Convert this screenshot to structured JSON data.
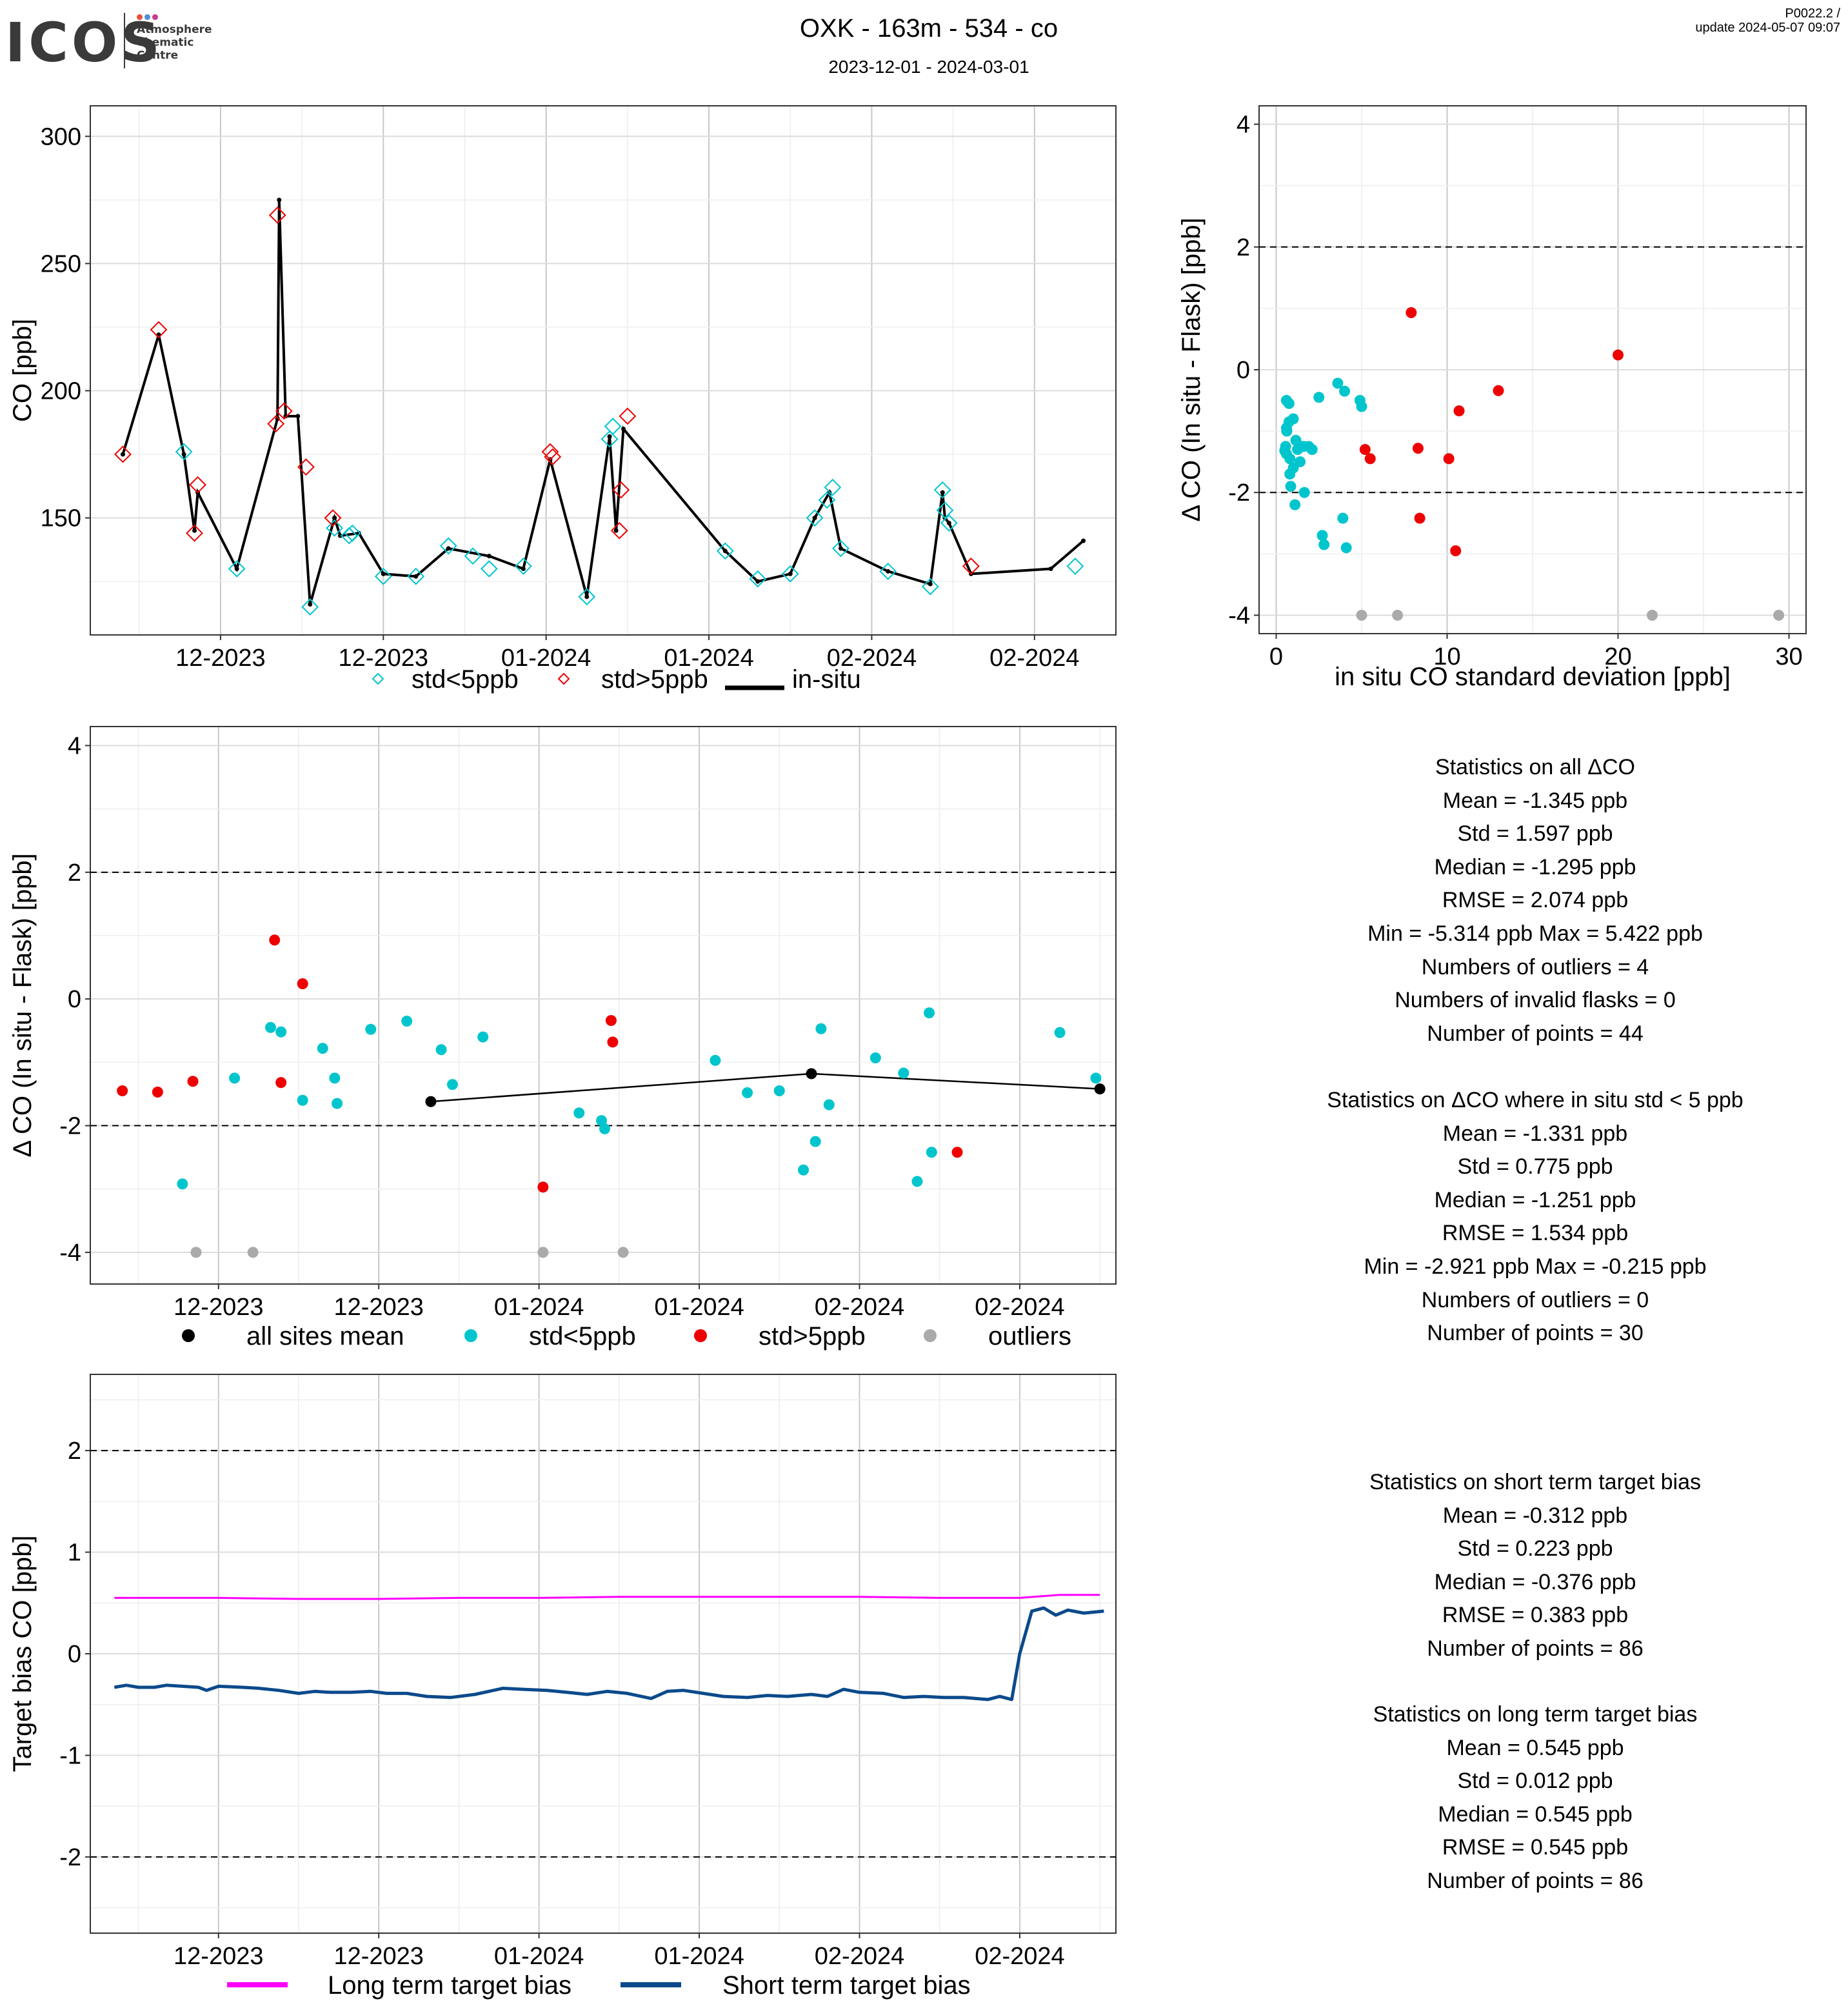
{
  "header": {
    "logo_word": "ICOS",
    "logo_sub": [
      "Atmosphere",
      "Thematic",
      "Centre"
    ],
    "logo_dots": [
      "#e8503a",
      "#4a8fd6",
      "#cf3a8c"
    ],
    "title": "OXK - 163m - 534 - co",
    "subtitle": "2023-12-01 - 2024-03-01",
    "version_line1": "P0022.2 /",
    "version_line2": "update  2024-05-07 09:07"
  },
  "colors": {
    "cyan": "#00c5cd",
    "red": "#ee0000",
    "grey": "#aaaaaa",
    "black": "#000000",
    "magenta": "#ff00ff",
    "navy": "#0b4a8b"
  },
  "chart_data": [
    {
      "type": "line",
      "ylabel": "CO [ppb]",
      "xlim": [
        -0.6,
        12.0
      ],
      "ylim": [
        104,
        312
      ],
      "x_ticks": [
        1,
        3,
        5,
        7,
        9,
        11
      ],
      "x_tick_labels": [
        "12-2023",
        "12-2023",
        "01-2024",
        "01-2024",
        "02-2024",
        "02-2024"
      ],
      "y_ticks": [
        150,
        200,
        250,
        300
      ],
      "y_tick_labels": [
        "150",
        "200",
        "250",
        "300"
      ],
      "legend": [
        "std<5ppb",
        "std>5ppb",
        "in-situ"
      ],
      "legend_position": "bottom",
      "insitu": {
        "x": [
          -0.2,
          0.24,
          0.55,
          0.68,
          0.72,
          1.2,
          1.7,
          1.72,
          1.8,
          1.95,
          2.1,
          2.4,
          2.47,
          2.7,
          3.0,
          3.4,
          3.8,
          4.3,
          4.72,
          5.05,
          5.5,
          5.78,
          5.86,
          5.95,
          7.2,
          7.6,
          8.0,
          8.3,
          8.48,
          8.62,
          9.2,
          9.72,
          9.87,
          9.9,
          9.95,
          10.22,
          11.2,
          11.6
        ],
        "y": [
          175,
          222,
          175,
          145,
          160,
          130,
          189,
          275,
          190,
          190,
          116,
          150,
          143,
          144,
          128,
          127,
          138,
          135,
          130,
          173,
          119,
          182,
          145,
          185,
          137,
          125,
          128,
          150,
          160,
          138,
          129,
          124,
          160,
          150,
          148,
          128,
          130,
          141
        ]
      },
      "flasks_low": {
        "name": "std<5ppb",
        "x": [
          0.55,
          1.2,
          2.1,
          2.4,
          2.58,
          2.62,
          3.0,
          3.4,
          3.8,
          4.1,
          4.3,
          4.72,
          5.5,
          5.78,
          5.82,
          7.2,
          7.6,
          8.0,
          8.3,
          8.45,
          8.52,
          8.62,
          9.2,
          9.72,
          9.87,
          9.9,
          9.95,
          11.5
        ],
        "y": [
          176,
          130,
          115,
          146,
          143,
          144,
          127,
          127,
          139,
          135,
          130,
          131,
          119,
          181,
          186,
          137,
          126,
          128,
          150,
          157,
          162,
          138,
          129,
          123,
          161,
          153,
          148,
          131
        ]
      },
      "flasks_high": {
        "name": "std>5ppb",
        "x": [
          -0.2,
          0.24,
          0.68,
          0.72,
          1.68,
          1.7,
          1.78,
          2.05,
          2.38,
          5.05,
          5.08,
          5.9,
          5.92,
          6.0,
          10.22
        ],
        "y": [
          175,
          224,
          144,
          163,
          187,
          269,
          192,
          170,
          150,
          176,
          174,
          145,
          161,
          190,
          131
        ]
      }
    },
    {
      "type": "scatter",
      "xlabel": "in situ CO standard deviation [ppb]",
      "ylabel": "Δ CO (In situ - Flask) [ppb]",
      "xlim": [
        -1,
        31
      ],
      "ylim": [
        -4.3,
        4.3
      ],
      "x_ticks": [
        0,
        10,
        20,
        30
      ],
      "x_tick_labels": [
        "0",
        "10",
        "20",
        "30"
      ],
      "y_ticks": [
        -4,
        -2,
        0,
        2,
        4
      ],
      "y_tick_labels": [
        "-4",
        "-2",
        "0",
        "2",
        "4"
      ],
      "hlines": [
        -2,
        2
      ],
      "series": [
        {
          "name": "std<5ppb",
          "x": [
            0.5,
            0.55,
            0.6,
            0.6,
            0.6,
            0.62,
            0.75,
            0.75,
            0.8,
            0.8,
            0.85,
            1.0,
            1.0,
            1.1,
            1.15,
            1.25,
            1.4,
            1.5,
            1.6,
            1.65,
            1.9,
            2.1,
            2.5,
            2.7,
            2.8,
            3.6,
            3.9,
            4.0,
            4.1,
            4.9,
            5.0
          ],
          "y": [
            -1.32,
            -1.25,
            -1.37,
            -0.5,
            -0.95,
            -1.0,
            -0.55,
            -0.85,
            -1.45,
            -1.7,
            -1.9,
            -0.8,
            -1.6,
            -2.2,
            -1.15,
            -1.3,
            -1.5,
            -1.25,
            -1.25,
            -2.0,
            -1.25,
            -1.3,
            -0.45,
            -2.7,
            -2.85,
            -0.22,
            -2.42,
            -0.35,
            -2.9,
            -0.5,
            -0.6
          ]
        },
        {
          "name": "std>5ppb",
          "x": [
            5.2,
            5.5,
            7.9,
            8.3,
            8.4,
            10.1,
            10.5,
            10.7,
            13.0,
            20.0
          ],
          "y": [
            -1.3,
            -1.45,
            0.93,
            -1.28,
            -2.42,
            -1.45,
            -2.95,
            -0.67,
            -0.34,
            0.24
          ]
        },
        {
          "name": "outliers",
          "x": [
            5.0,
            7.1,
            22.0,
            29.4
          ],
          "y": [
            -4.0,
            -4.0,
            -4.0,
            -4.0
          ]
        }
      ]
    },
    {
      "type": "scatter",
      "ylabel": "Δ CO (In situ - Flask) [ppb]",
      "xlim": [
        -0.6,
        12.2
      ],
      "ylim": [
        -4.5,
        4.3
      ],
      "x_ticks": [
        1,
        3,
        5,
        7,
        9,
        11
      ],
      "x_tick_labels": [
        "12-2023",
        "12-2023",
        "01-2024",
        "01-2024",
        "02-2024",
        "02-2024"
      ],
      "y_ticks": [
        -4,
        -2,
        0,
        2,
        4
      ],
      "y_tick_labels": [
        "-4",
        "-2",
        "0",
        "2",
        "4"
      ],
      "hlines": [
        -2,
        2
      ],
      "legend": [
        "all sites mean",
        "std<5ppb",
        "std>5ppb",
        "outliers"
      ],
      "legend_position": "bottom",
      "series": [
        {
          "name": "all sites mean",
          "x": [
            3.65,
            8.4,
            12.0
          ],
          "y": [
            -1.62,
            -1.18,
            -1.42
          ]
        },
        {
          "name": "std<5ppb",
          "x": [
            0.55,
            1.2,
            1.65,
            1.78,
            2.05,
            2.3,
            2.45,
            2.48,
            2.9,
            3.35,
            3.78,
            3.92,
            4.3,
            5.5,
            5.78,
            5.82,
            7.2,
            7.6,
            8.0,
            8.3,
            8.45,
            8.52,
            8.62,
            9.2,
            9.55,
            9.72,
            9.87,
            9.9,
            11.5,
            11.95
          ],
          "y": [
            -2.92,
            -1.25,
            -0.45,
            -0.52,
            -1.6,
            -0.78,
            -1.25,
            -1.65,
            -0.48,
            -0.35,
            -0.8,
            -1.35,
            -0.6,
            -1.8,
            -1.92,
            -2.05,
            -0.97,
            -1.48,
            -1.45,
            -2.7,
            -2.25,
            -0.47,
            -1.67,
            -0.93,
            -1.17,
            -2.88,
            -0.22,
            -2.42,
            -0.53,
            -1.25
          ]
        },
        {
          "name": "std>5ppb",
          "x": [
            -0.2,
            0.24,
            0.68,
            1.7,
            1.78,
            2.05,
            5.05,
            5.9,
            5.92,
            10.22
          ],
          "y": [
            -1.45,
            -1.47,
            -1.3,
            0.93,
            -1.32,
            0.24,
            -2.97,
            -0.34,
            -0.68,
            -2.42
          ]
        },
        {
          "name": "outliers",
          "x": [
            0.72,
            1.43,
            5.05,
            6.05
          ],
          "y": [
            -4.0,
            -4.0,
            -4.0,
            -4.0
          ]
        }
      ]
    },
    {
      "type": "line",
      "ylabel": "Target bias CO [ppb]",
      "xlim": [
        -0.6,
        12.2
      ],
      "ylim": [
        -2.75,
        2.75
      ],
      "x_ticks": [
        1,
        3,
        5,
        7,
        9,
        11
      ],
      "x_tick_labels": [
        "12-2023",
        "12-2023",
        "01-2024",
        "01-2024",
        "02-2024",
        "02-2024"
      ],
      "y_ticks": [
        -2,
        -1,
        0,
        1,
        2
      ],
      "y_tick_labels": [
        "-2",
        "-1",
        "0",
        "1",
        "2"
      ],
      "hlines": [
        -2,
        2
      ],
      "legend": [
        "Long term target bias",
        "Short term target bias"
      ],
      "legend_position": "bottom",
      "series": [
        {
          "name": "Long term target bias",
          "x": [
            -0.3,
            1.0,
            2.0,
            3.0,
            4.0,
            5.0,
            6.0,
            7.0,
            8.0,
            9.0,
            10.0,
            11.0,
            11.5,
            12.0
          ],
          "y": [
            0.55,
            0.55,
            0.54,
            0.54,
            0.55,
            0.55,
            0.56,
            0.56,
            0.56,
            0.56,
            0.55,
            0.55,
            0.58,
            0.58
          ]
        },
        {
          "name": "Short term target bias",
          "x": [
            -0.3,
            -0.15,
            0.0,
            0.2,
            0.35,
            0.55,
            0.75,
            0.85,
            1.0,
            1.3,
            1.5,
            1.75,
            2.0,
            2.2,
            2.4,
            2.65,
            2.9,
            3.1,
            3.35,
            3.6,
            3.9,
            4.2,
            4.55,
            4.8,
            5.1,
            5.35,
            5.6,
            5.85,
            6.1,
            6.4,
            6.6,
            6.8,
            7.05,
            7.3,
            7.6,
            7.85,
            8.1,
            8.4,
            8.6,
            8.8,
            9.0,
            9.3,
            9.55,
            9.8,
            10.05,
            10.3,
            10.6,
            10.75,
            10.9,
            11.0,
            11.15,
            11.3,
            11.45,
            11.6,
            11.8,
            12.05
          ],
          "y": [
            -0.33,
            -0.31,
            -0.33,
            -0.33,
            -0.31,
            -0.32,
            -0.33,
            -0.36,
            -0.32,
            -0.33,
            -0.34,
            -0.36,
            -0.39,
            -0.37,
            -0.38,
            -0.38,
            -0.37,
            -0.39,
            -0.39,
            -0.42,
            -0.43,
            -0.4,
            -0.34,
            -0.35,
            -0.36,
            -0.38,
            -0.4,
            -0.37,
            -0.39,
            -0.44,
            -0.37,
            -0.36,
            -0.39,
            -0.42,
            -0.43,
            -0.41,
            -0.42,
            -0.4,
            -0.42,
            -0.35,
            -0.38,
            -0.39,
            -0.43,
            -0.42,
            -0.43,
            -0.43,
            -0.45,
            -0.42,
            -0.45,
            0.0,
            0.42,
            0.45,
            0.38,
            0.43,
            0.4,
            0.42
          ]
        }
      ]
    }
  ],
  "stats": {
    "all_delta": [
      "Statistics on all ΔCO",
      "Mean =  -1.345 ppb",
      "Std =  1.597 ppb",
      "Median =  -1.295 ppb",
      "RMSE =  2.074 ppb",
      "Min =  -5.314 ppb Max =  5.422 ppb",
      "Numbers of outliers =  4",
      "Numbers of invalid flasks =  0",
      "Number of points =  44"
    ],
    "std5_delta": [
      "Statistics on ΔCO where in situ std < 5 ppb",
      "Mean =  -1.331 ppb",
      "Std =  0.775 ppb",
      "Median =  -1.251 ppb",
      "RMSE =  1.534 ppb",
      "Min =  -2.921 ppb Max =  -0.215 ppb",
      "Numbers of outliers =  0",
      "Number of points =  30"
    ],
    "short_bias": [
      "Statistics on short term target bias",
      "Mean =  -0.312 ppb",
      "Std =  0.223 ppb",
      "Median =  -0.376 ppb",
      "RMSE =  0.383 ppb",
      "Number of points =  86"
    ],
    "long_bias": [
      "Statistics on long term target bias",
      "Mean =  0.545 ppb",
      "Std =  0.012 ppb",
      "Median =  0.545 ppb",
      "RMSE =  0.545 ppb",
      "Number of points =  86"
    ]
  }
}
